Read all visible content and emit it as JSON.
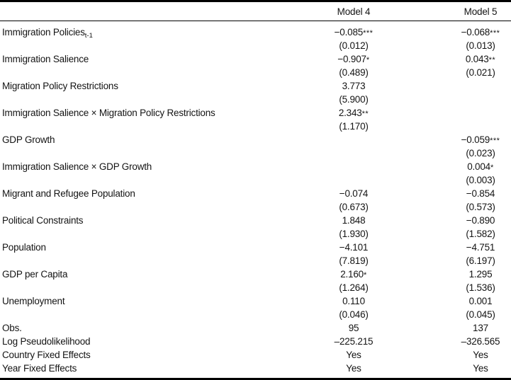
{
  "table": {
    "columns": [
      "Model 4",
      "Model 5"
    ],
    "rows": [
      {
        "label": "Immigration Policies",
        "label_sub": "t-1",
        "m4": {
          "coef": "−0.085",
          "stars": "***",
          "se": "(0.012)"
        },
        "m5": {
          "coef": "−0.068",
          "stars": "***",
          "se": "(0.013)"
        }
      },
      {
        "label": "Immigration Salience",
        "m4": {
          "coef": "−0.907",
          "stars": "*",
          "se": "(0.489)"
        },
        "m5": {
          "coef": "0.043",
          "stars": "**",
          "se": "(0.021)"
        }
      },
      {
        "label": "Migration Policy Restrictions",
        "m4": {
          "coef": "3.773",
          "se": "(5.900)"
        },
        "m5": {}
      },
      {
        "label": "Immigration Salience × Migration Policy Restrictions",
        "m4": {
          "coef": "2.343",
          "stars": "**",
          "se": "(1.170)"
        },
        "m5": {}
      },
      {
        "label": "GDP Growth",
        "m4": {},
        "m5": {
          "coef": "−0.059",
          "stars": "***",
          "se": "(0.023)"
        }
      },
      {
        "label": "Immigration Salience × GDP Growth",
        "m4": {},
        "m5": {
          "coef": "0.004",
          "stars": "*",
          "se": "(0.003)"
        }
      },
      {
        "label": "Migrant and Refugee Population",
        "m4": {
          "coef": "−0.074",
          "se": "(0.673)"
        },
        "m5": {
          "coef": "−0.854",
          "se": "(0.573)"
        }
      },
      {
        "label": "Political Constraints",
        "m4": {
          "coef": "1.848",
          "se": "(1.930)"
        },
        "m5": {
          "coef": "−0.890",
          "se": "(1.582)"
        }
      },
      {
        "label": "Population",
        "m4": {
          "coef": "−4.101",
          "se": "(7.819)"
        },
        "m5": {
          "coef": "−4.751",
          "se": "(6.197)"
        }
      },
      {
        "label": "GDP per Capita",
        "m4": {
          "coef": "2.160",
          "stars": "*",
          "se": "(1.264)"
        },
        "m5": {
          "coef": "1.295",
          "se": "(1.536)"
        }
      },
      {
        "label": "Unemployment",
        "m4": {
          "coef": "0.110",
          "se": "(0.046)"
        },
        "m5": {
          "coef": "0.001",
          "se": "(0.045)"
        }
      }
    ],
    "stats": [
      {
        "label": "Obs.",
        "m4": "95",
        "m5": "137"
      },
      {
        "label": "Log Pseudolikelihood",
        "m4": "–225.215",
        "m5": "–326.565"
      },
      {
        "label": "Country Fixed Effects",
        "m4": "Yes",
        "m5": "Yes"
      },
      {
        "label": "Year Fixed Effects",
        "m4": "Yes",
        "m5": "Yes"
      }
    ]
  }
}
